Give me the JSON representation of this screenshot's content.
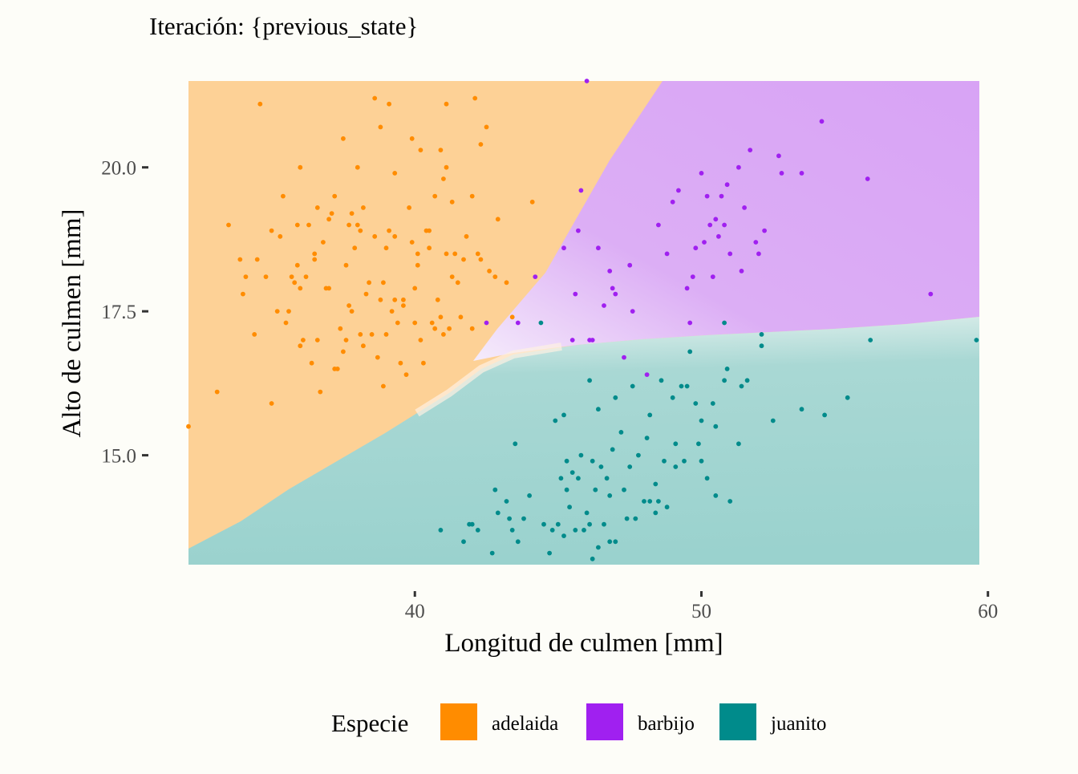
{
  "chart_data": {
    "type": "scatter",
    "title": "Iteración: {previous_state}",
    "xlabel": "Longitud de culmen [mm]",
    "ylabel": "Alto de culmen [mm]",
    "xlim": [
      32.1,
      59.7
    ],
    "ylim": [
      13.1,
      21.5
    ],
    "xticks": [
      40,
      50,
      60
    ],
    "yticks": [
      15.0,
      17.5,
      20.0
    ],
    "xtick_labels": [
      "40",
      "50",
      "60"
    ],
    "ytick_labels": [
      "15.0",
      "17.5",
      "20.0"
    ],
    "grid": false,
    "background": "decision-regions",
    "legend": {
      "title": "Especie",
      "position": "bottom",
      "entries": [
        {
          "label": "adelaida",
          "color": "#ff8c00"
        },
        {
          "label": "barbijo",
          "color": "#a020f0"
        },
        {
          "label": "juanito",
          "color": "#008b8b"
        }
      ]
    },
    "region_colors": {
      "adelaida": "#fdd196",
      "barbijo": "#d8a3f5",
      "juanito": "#9ad2ce",
      "boundary": "#fdf1e2"
    },
    "series": [
      {
        "name": "adelaida",
        "color": "#ff8c00",
        "x": [
          34.6,
          38.6,
          39.1,
          41.1,
          42.1,
          40.9,
          36.0,
          39.3,
          37.5,
          42.5,
          38.8,
          40.2,
          37.2,
          39.9,
          40.7,
          41.1,
          44.1,
          42.3,
          35.4,
          38.0,
          41.3,
          35.9,
          36.6,
          37.8,
          41.0,
          42.0,
          33.5,
          34.5,
          35.0,
          36.5,
          38.1,
          39.3,
          40.5,
          42.2,
          37.6,
          36.2,
          39.0,
          40.1,
          41.4,
          42.8,
          35.7,
          34.1,
          37.0,
          38.3,
          39.6,
          40.8,
          41.5,
          43.2,
          32.1,
          33.1,
          34.4,
          35.2,
          36.0,
          36.9,
          37.7,
          38.5,
          39.2,
          40.0,
          40.6,
          41.6,
          35.0,
          36.4,
          37.3,
          38.2,
          38.9,
          39.7,
          40.3,
          41.0,
          42.0,
          43.4,
          36.7,
          37.5,
          38.7,
          39.5,
          40.2,
          41.2,
          34.0,
          35.3,
          36.3,
          37.1,
          38.6,
          39.8,
          41.8,
          42.9,
          35.6,
          36.8,
          37.9,
          39.1,
          40.5,
          41.7,
          36.0,
          37.4,
          38.1,
          39.4,
          40.7,
          35.5,
          36.6,
          37.6,
          38.8,
          40.1,
          34.8,
          36.1,
          37.2,
          38.4,
          39.6,
          40.9,
          42.3,
          33.9,
          35.9,
          37.8,
          39.0,
          40.4,
          36.5,
          38.0,
          39.9,
          41.3,
          42.6,
          37.0,
          38.2,
          39.3,
          40.0,
          41.1,
          35.8,
          37.7,
          38.9
        ],
        "y": [
          21.1,
          21.2,
          21.1,
          21.1,
          21.2,
          20.3,
          20.0,
          19.9,
          20.5,
          20.7,
          20.7,
          20.3,
          19.5,
          20.5,
          19.5,
          20.0,
          19.4,
          20.4,
          19.5,
          20.0,
          19.4,
          19.0,
          19.3,
          19.2,
          19.8,
          19.5,
          19.0,
          18.4,
          18.9,
          18.5,
          18.9,
          18.8,
          18.9,
          18.5,
          18.3,
          18.1,
          18.6,
          18.3,
          18.5,
          18.1,
          18.1,
          18.1,
          17.9,
          17.8,
          17.7,
          17.7,
          18.0,
          18.0,
          15.5,
          16.1,
          17.1,
          17.5,
          17.9,
          17.9,
          17.6,
          17.1,
          17.5,
          17.3,
          17.3,
          17.4,
          15.9,
          16.6,
          16.5,
          16.9,
          16.2,
          16.4,
          16.6,
          17.1,
          17.2,
          17.4,
          16.1,
          16.8,
          16.7,
          16.6,
          17.0,
          17.2,
          17.8,
          18.8,
          19.0,
          19.2,
          18.8,
          19.3,
          18.8,
          19.1,
          17.5,
          18.7,
          18.6,
          18.9,
          18.6,
          18.4,
          16.9,
          17.2,
          17.1,
          17.3,
          17.2,
          17.3,
          17.0,
          17.0,
          17.7,
          18.5,
          18.1,
          17.0,
          16.5,
          18.0,
          17.6,
          17.4,
          18.4,
          18.4,
          18.3,
          17.5,
          17.1,
          18.9,
          18.4,
          19.0,
          18.7,
          18.1,
          18.2,
          19.1,
          19.3,
          17.7,
          17.9,
          18.5,
          18.0,
          19.0,
          18.0
        ]
      },
      {
        "name": "barbijo",
        "color": "#a020f0",
        "x": [
          46.0,
          45.8,
          50.0,
          51.3,
          52.7,
          49.2,
          50.8,
          51.9,
          53.5,
          54.2,
          55.8,
          58.0,
          50.4,
          49.5,
          52.0,
          50.5,
          51.5,
          49.8,
          48.5,
          50.9,
          46.4,
          47.0,
          45.2,
          46.8,
          47.5,
          49.0,
          50.2,
          51.0,
          52.2,
          46.6,
          45.5,
          44.2,
          43.6,
          42.5,
          47.6,
          48.1,
          45.6,
          46.2,
          49.6,
          51.4,
          46.9,
          50.7,
          52.8,
          50.6,
          49.7,
          50.1,
          51.7,
          48.8,
          47.3,
          46.1,
          45.7,
          50.3
        ],
        "y": [
          21.5,
          19.6,
          19.9,
          20.0,
          20.2,
          19.6,
          19.0,
          18.7,
          19.9,
          20.8,
          19.8,
          17.8,
          18.1,
          17.9,
          18.5,
          19.1,
          19.3,
          18.6,
          19.0,
          19.7,
          18.6,
          17.8,
          18.6,
          18.2,
          18.3,
          19.4,
          19.5,
          18.5,
          18.9,
          17.6,
          17.0,
          18.1,
          17.3,
          17.3,
          17.5,
          16.4,
          17.8,
          17.0,
          17.3,
          18.2,
          17.9,
          19.5,
          19.9,
          18.8,
          18.1,
          18.7,
          20.3,
          18.5,
          16.7,
          17.0,
          18.9,
          19.0
        ],
        "note": "scattered"
      },
      {
        "name": "juanito",
        "color": "#008b8b",
        "x": [
          44.4,
          46.1,
          50.8,
          52.1,
          55.9,
          59.6,
          49.6,
          50.9,
          51.6,
          52.1,
          53.5,
          54.3,
          55.1,
          49.5,
          49.0,
          49.3,
          48.6,
          47.6,
          48.2,
          49.8,
          50.0,
          50.4,
          50.5,
          50.8,
          51.4,
          52.5,
          45.2,
          46.4,
          47.0,
          47.2,
          47.8,
          48.1,
          48.7,
          49.1,
          45.8,
          46.9,
          44.9,
          43.5,
          42.8,
          43.2,
          43.3,
          44.0,
          45.3,
          45.5,
          45.7,
          46.2,
          46.5,
          46.7,
          47.5,
          48.4,
          45.4,
          45.1,
          46.8,
          47.3,
          48.0,
          48.5,
          49.4,
          50.2,
          51.0,
          51.3,
          42.9,
          43.4,
          44.5,
          45.0,
          45.6,
          46.0,
          46.3,
          46.6,
          47.4,
          48.2,
          48.8,
          49.9,
          41.7,
          42.2,
          42.0,
          43.8,
          44.8,
          45.2,
          45.9,
          46.1,
          46.4,
          47.0,
          47.7,
          40.9,
          41.9,
          42.7,
          43.6,
          44.7,
          45.3,
          46.2,
          46.8,
          48.4,
          50.5,
          49.1,
          50.0
        ],
        "y": [
          17.3,
          16.3,
          17.3,
          16.9,
          17.0,
          17.0,
          16.8,
          16.5,
          16.3,
          17.1,
          15.8,
          15.7,
          16.0,
          16.2,
          16.0,
          16.2,
          16.3,
          16.2,
          15.7,
          15.9,
          15.6,
          15.9,
          15.5,
          16.3,
          16.2,
          15.6,
          15.7,
          15.8,
          16.0,
          15.4,
          15.0,
          15.3,
          14.9,
          14.8,
          15.0,
          15.1,
          15.6,
          15.2,
          14.4,
          14.2,
          13.9,
          14.3,
          14.4,
          14.7,
          14.6,
          14.9,
          14.8,
          14.6,
          14.8,
          14.5,
          14.1,
          14.6,
          14.3,
          14.4,
          14.2,
          14.2,
          14.9,
          14.6,
          14.2,
          15.2,
          14.0,
          13.7,
          13.8,
          13.8,
          13.7,
          14.0,
          14.4,
          13.8,
          13.9,
          14.2,
          14.1,
          15.2,
          13.5,
          13.7,
          13.8,
          13.9,
          13.7,
          13.6,
          13.7,
          13.8,
          13.4,
          13.5,
          13.9,
          13.7,
          13.8,
          13.3,
          13.5,
          13.3,
          14.9,
          13.2,
          13.5,
          14.0,
          14.3,
          15.2,
          14.9
        ]
      }
    ]
  }
}
